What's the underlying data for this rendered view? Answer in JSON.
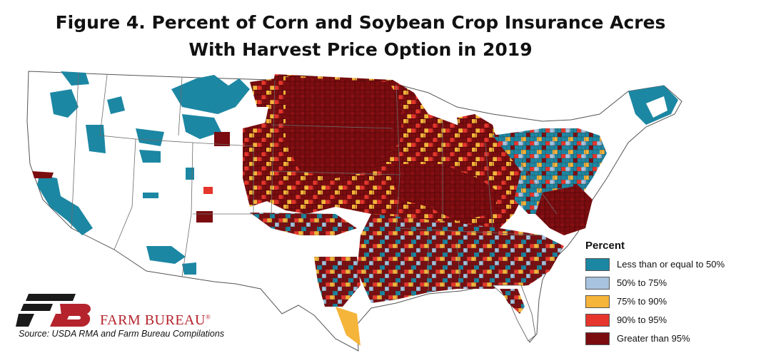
{
  "title": {
    "line1": "Figure 4. Percent of Corn and Soybean Crop Insurance Acres",
    "line2": "With Harvest Price Option in 2019"
  },
  "legend": {
    "title": "Percent",
    "items": [
      {
        "label": "Less than or equal to 50%",
        "color": "#1c87a3"
      },
      {
        "label": "50% to 75%",
        "color": "#a7c3df"
      },
      {
        "label": "75% to 90%",
        "color": "#f5b43a"
      },
      {
        "label": "90% to 95%",
        "color": "#e5352c"
      },
      {
        "label": "Greater than 95%",
        "color": "#7b0d10"
      }
    ]
  },
  "brand": {
    "name": "FARM BUREAU",
    "mark": "®",
    "logo_color": "#b5242c"
  },
  "source": "Source: USDA RMA and Farm Bureau Compilations"
}
